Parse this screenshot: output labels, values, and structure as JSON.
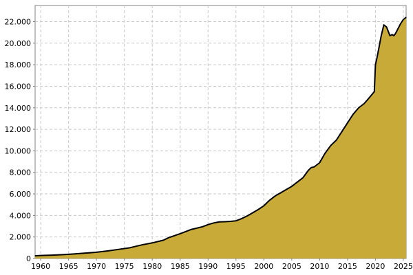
{
  "chart_data": {
    "type": "area",
    "title": "",
    "xlabel": "",
    "ylabel": "",
    "xlim": [
      1959,
      2025.5
    ],
    "ylim": [
      0,
      23500
    ],
    "grid": true,
    "legend": "none",
    "colors": {
      "fill": "#c8aa38",
      "line": "#000000",
      "grid": "#c8c8c8",
      "frame": "#808080"
    },
    "x_ticks": [
      1960,
      1965,
      1970,
      1975,
      1980,
      1985,
      1990,
      1995,
      2000,
      2005,
      2010,
      2015,
      2020,
      2025
    ],
    "x_tick_labels": [
      "1960",
      "1965",
      "1970",
      "1975",
      "1980",
      "1985",
      "1990",
      "1995",
      "2000",
      "2005",
      "2010",
      "2015",
      "2020",
      "2025"
    ],
    "y_ticks": [
      0,
      2000,
      4000,
      6000,
      8000,
      10000,
      12000,
      14000,
      16000,
      18000,
      20000,
      22000
    ],
    "y_tick_labels": [
      "0",
      "2.000",
      "4.000",
      "6.000",
      "8.000",
      "10.000",
      "12.000",
      "14.000",
      "16.000",
      "18.000",
      "20.000",
      "22.000"
    ],
    "series": [
      {
        "x": [
          1959,
          1960,
          1962,
          1964,
          1966,
          1968,
          1970,
          1972,
          1974,
          1976,
          1978,
          1980,
          1982,
          1983,
          1985,
          1987,
          1989,
          1990,
          1991,
          1992,
          1993,
          1994,
          1995,
          1996,
          1997,
          1998,
          1999,
          2000,
          2001,
          2002,
          2003,
          2004,
          2005,
          2006,
          2007,
          2008,
          2008.5,
          2009,
          2010,
          2011,
          2012,
          2013,
          2014,
          2015,
          2016,
          2017,
          2018,
          2019,
          2019.8,
          2020.0,
          2020.3,
          2020.6,
          2021,
          2021.5,
          2022,
          2022.3,
          2022.6,
          2023,
          2023.3,
          2023.6,
          2024,
          2024.5,
          2025,
          2025.5
        ],
        "values": [
          250,
          280,
          310,
          360,
          420,
          500,
          580,
          700,
          850,
          1000,
          1250,
          1450,
          1700,
          1950,
          2300,
          2700,
          2950,
          3150,
          3300,
          3400,
          3420,
          3450,
          3500,
          3700,
          3950,
          4250,
          4550,
          4900,
          5400,
          5800,
          6100,
          6400,
          6700,
          7100,
          7500,
          8200,
          8450,
          8500,
          8900,
          9800,
          10500,
          11000,
          11800,
          12600,
          13400,
          14000,
          14400,
          15000,
          15500,
          18000,
          18700,
          19500,
          20600,
          21700,
          21500,
          21100,
          20700,
          20800,
          20700,
          20900,
          21300,
          21800,
          22200,
          22400
        ]
      }
    ]
  }
}
